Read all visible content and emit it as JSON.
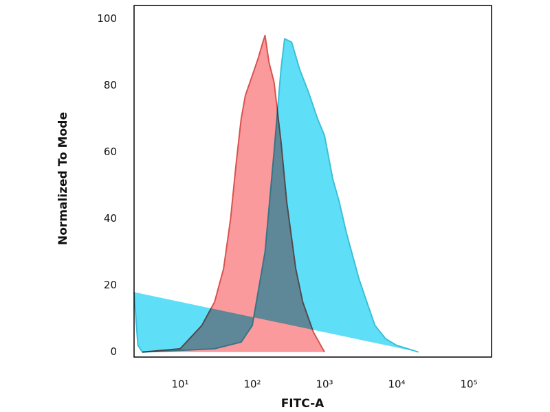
{
  "chart_data": {
    "type": "area",
    "xlabel": "FITC-A",
    "ylabel": "Normalized To Mode",
    "xscale": "log",
    "xlim": [
      2.3,
      206000
    ],
    "ylim": [
      -1.5,
      104
    ],
    "xticks": [
      {
        "value": 10,
        "label": "10¹"
      },
      {
        "value": 100,
        "label": "10²"
      },
      {
        "value": 1000,
        "label": "10³"
      },
      {
        "value": 10000,
        "label": "10⁴"
      },
      {
        "value": 100000,
        "label": "10⁵"
      }
    ],
    "yticks": [
      0,
      20,
      40,
      60,
      80,
      100
    ],
    "series": [
      {
        "color": "#5fdff7",
        "stroke": "#3bbfd8",
        "x": [
          2.3,
          2.6,
          3,
          10,
          30,
          70,
          100,
          150,
          200,
          250,
          280,
          350,
          450,
          600,
          800,
          1000,
          1300,
          1600,
          2000,
          3000,
          4000,
          5000,
          7000,
          10000,
          20000
        ],
        "values": [
          18,
          2,
          0,
          0.5,
          1,
          3,
          8,
          30,
          60,
          85,
          94,
          93,
          85,
          78,
          70,
          65,
          52,
          45,
          36,
          22,
          14,
          8,
          4,
          2,
          0
        ]
      },
      {
        "color": "#fb9a9c",
        "stroke": "#d8534f",
        "x": [
          3,
          10,
          20,
          30,
          40,
          50,
          60,
          70,
          80,
          100,
          120,
          140,
          150,
          170,
          200,
          250,
          300,
          400,
          500,
          700,
          1000
        ],
        "values": [
          0,
          1,
          8,
          15,
          25,
          40,
          57,
          70,
          77,
          83,
          88,
          93,
          95,
          87,
          81,
          63,
          45,
          25,
          15,
          6,
          0
        ]
      }
    ]
  }
}
